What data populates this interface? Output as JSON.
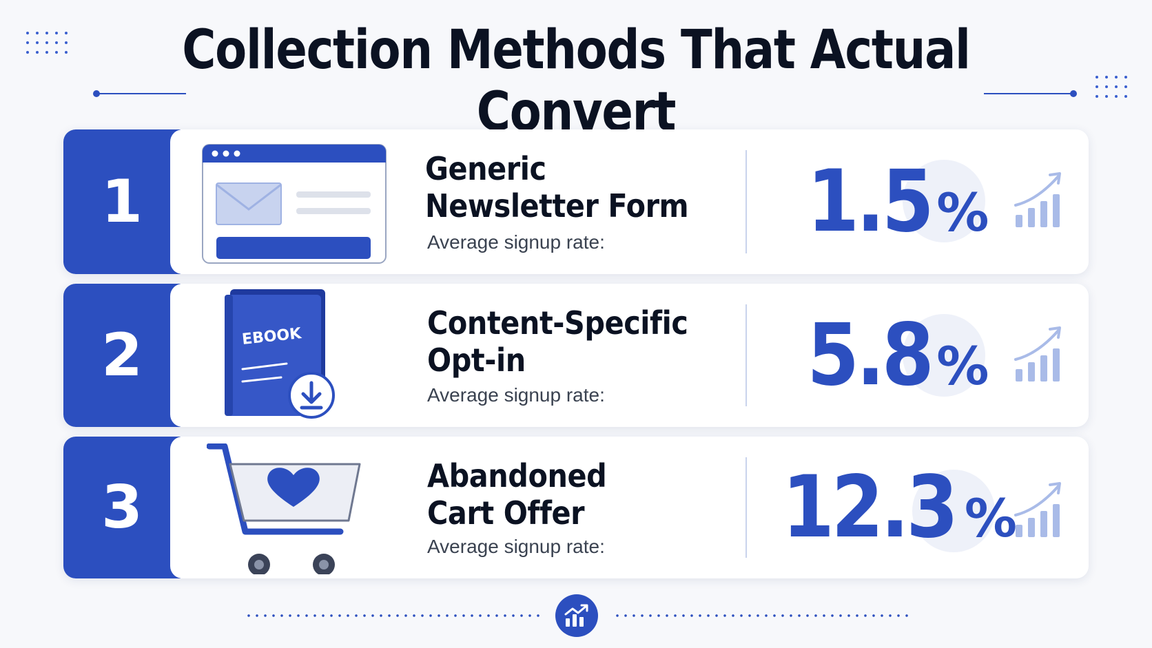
{
  "title": "Collection Methods That Actual Convert",
  "colors": {
    "accent": "#2c4fbf",
    "light_accent": "#a9bbe8",
    "text": "#0b1222"
  },
  "methods": [
    {
      "number": "1",
      "name_line1": "Generic",
      "name_line2": "Newsletter Form",
      "subtitle": "Average signup rate:",
      "rate_value": "1.5",
      "rate_unit": "%",
      "icon": "newsletter-form-icon"
    },
    {
      "number": "2",
      "name_line1": "Content-Specific",
      "name_line2": "Opt-in",
      "subtitle": "Average signup rate:",
      "rate_value": "5.8",
      "rate_unit": "%",
      "icon": "ebook-download-icon",
      "icon_label": "EBOOK"
    },
    {
      "number": "3",
      "name_line1": "Abandoned",
      "name_line2": "Cart Offer",
      "subtitle": "Average signup rate:",
      "rate_value": "12.3",
      "rate_unit": "%",
      "icon": "shopping-cart-heart-icon"
    }
  ],
  "footer": {
    "icon": "growth-chart-icon"
  }
}
